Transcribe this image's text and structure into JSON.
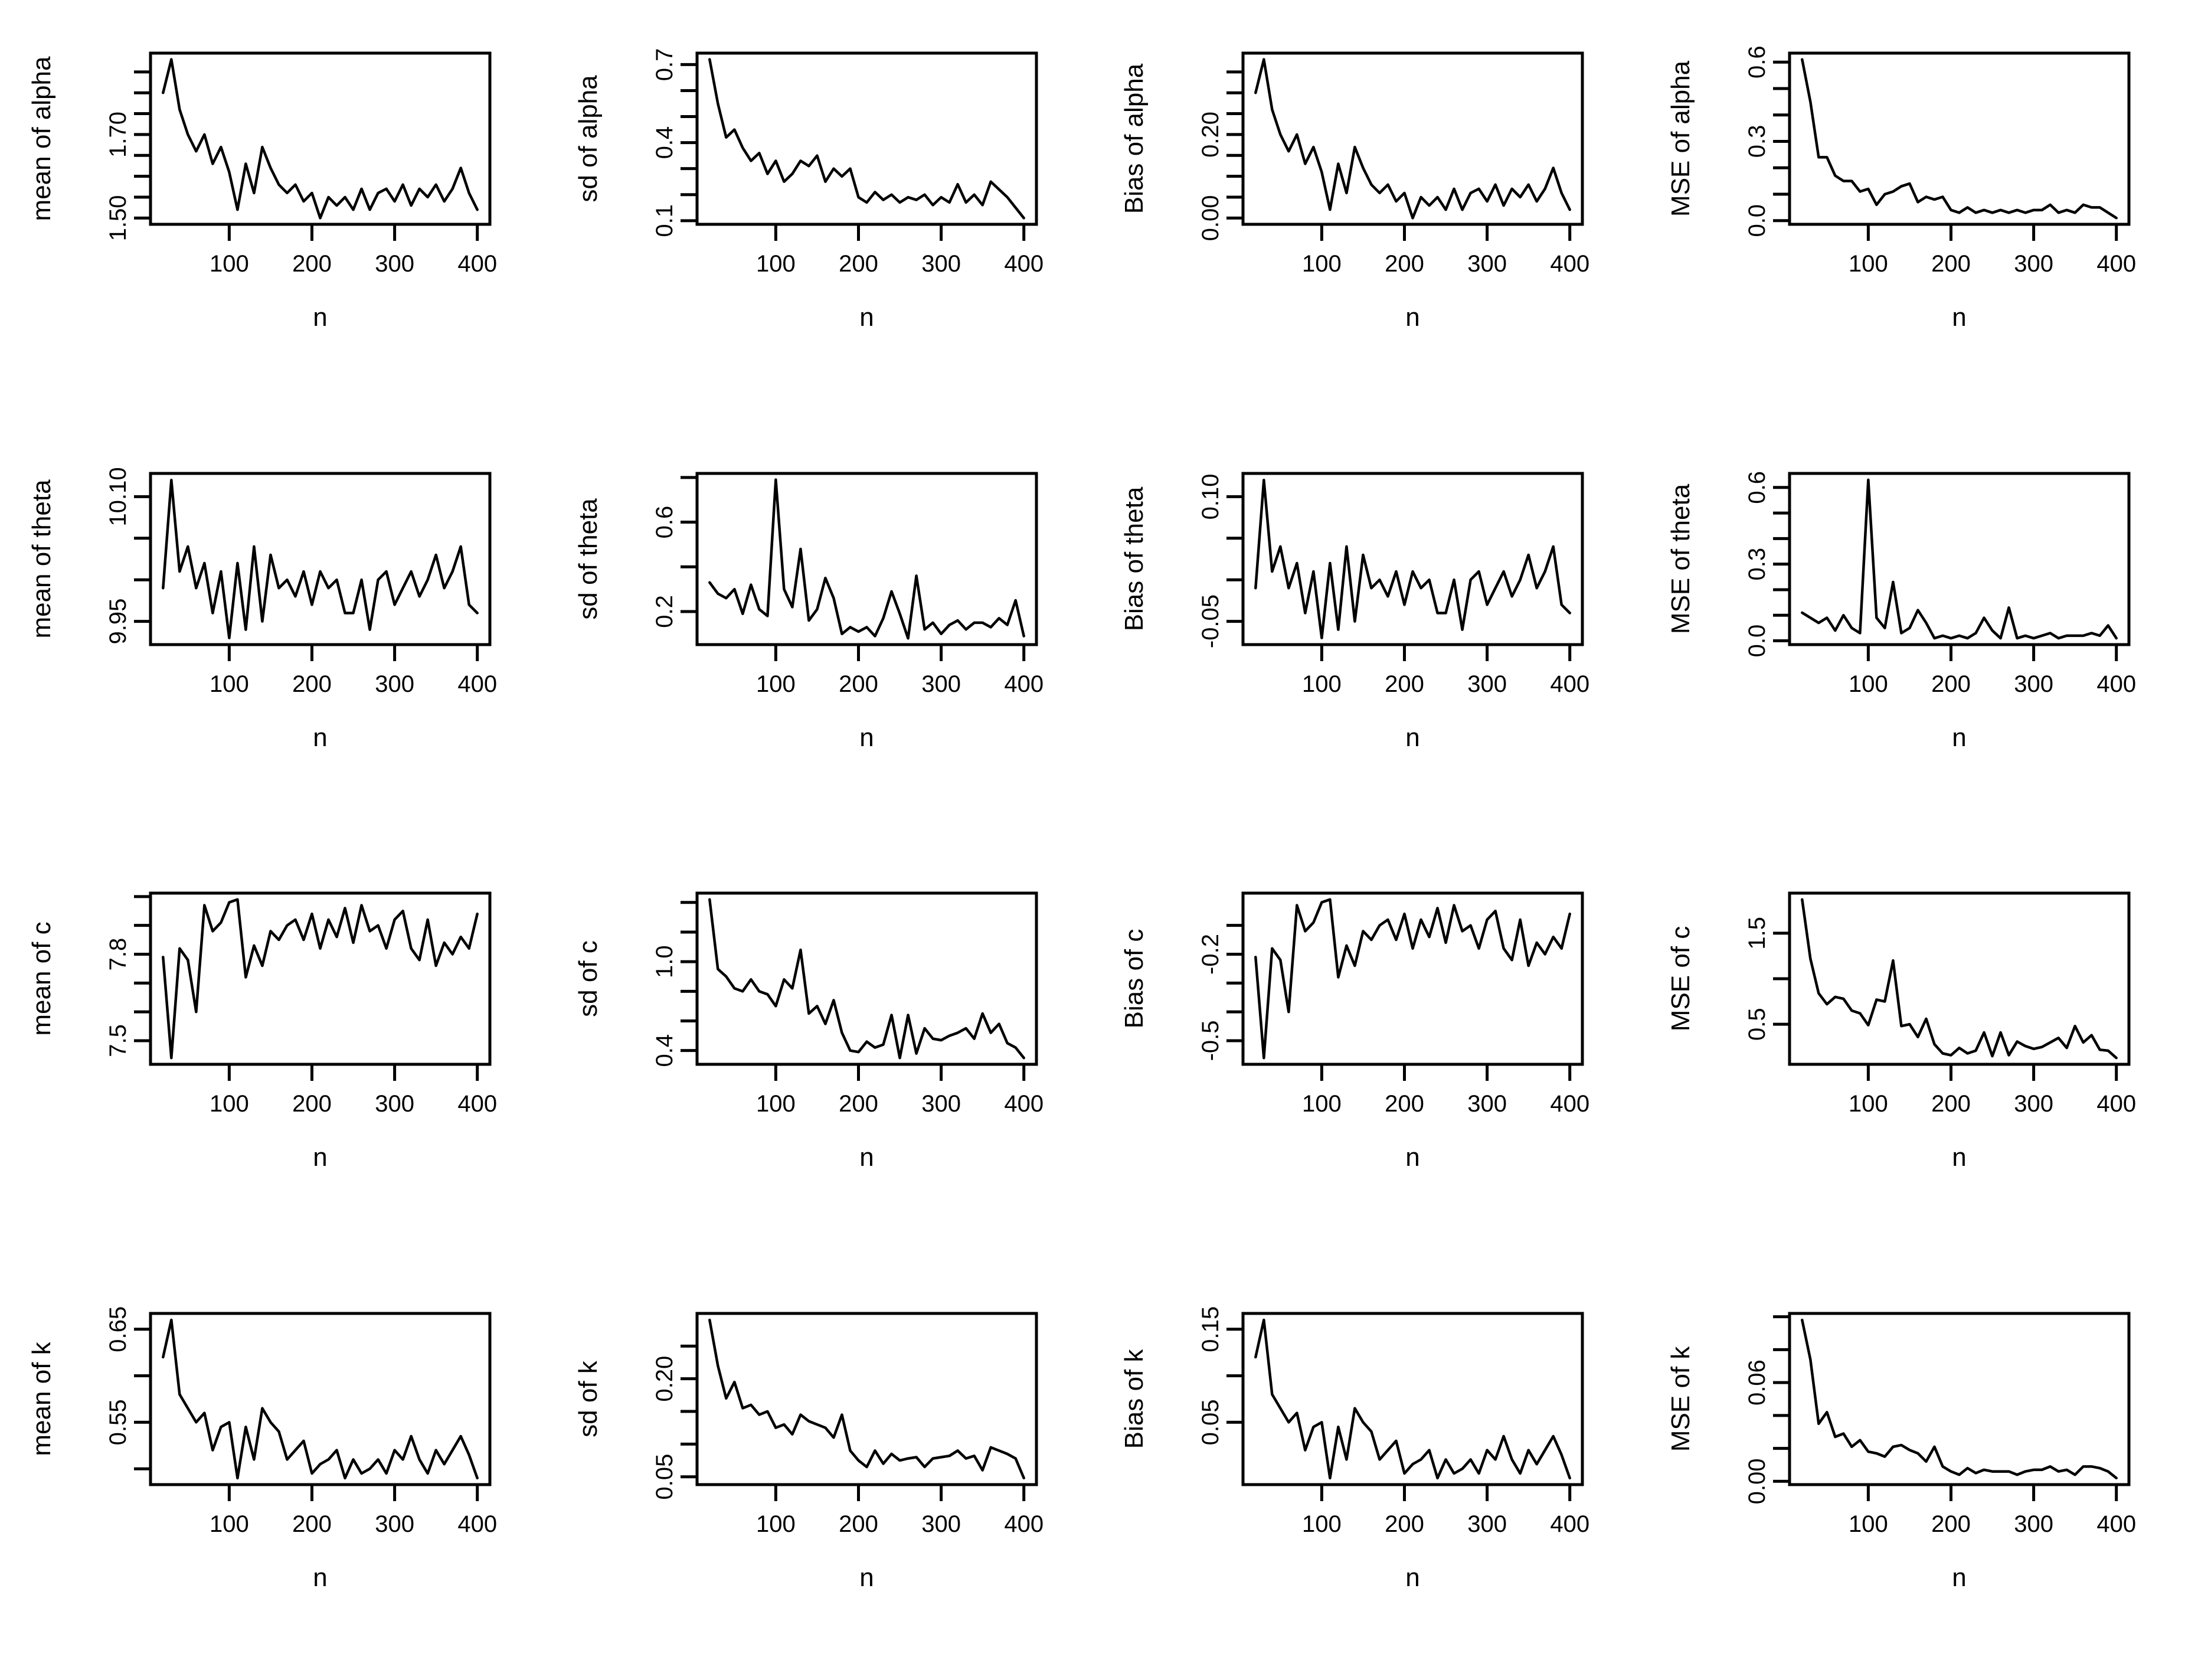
{
  "figure": {
    "background": "#ffffff",
    "line_color": "#000000",
    "xlabel": "n",
    "xlim": [
      4.8,
      415.2
    ],
    "x_ticks": [
      100,
      200,
      300,
      400
    ],
    "x_tick_labels": [
      "100",
      "200",
      "300",
      "400"
    ],
    "n": [
      20,
      30,
      40,
      50,
      60,
      70,
      80,
      90,
      100,
      110,
      120,
      130,
      140,
      150,
      160,
      170,
      180,
      190,
      200,
      210,
      220,
      230,
      240,
      250,
      260,
      270,
      280,
      290,
      300,
      310,
      320,
      330,
      340,
      350,
      360,
      370,
      380,
      390,
      400
    ]
  },
  "chart_data": [
    {
      "type": "line",
      "ylabel": "mean of alpha",
      "xlabel": "n",
      "ylim": [
        1.485,
        1.895
      ],
      "yticks": [
        1.5,
        1.55,
        1.6,
        1.65,
        1.7,
        1.75,
        1.8,
        1.85
      ],
      "ylabeled": [
        {
          "v": 1.5,
          "t": "1.50"
        },
        {
          "v": 1.7,
          "t": "1.70"
        }
      ],
      "values": [
        1.8,
        1.88,
        1.76,
        1.7,
        1.66,
        1.7,
        1.63,
        1.67,
        1.61,
        1.52,
        1.63,
        1.56,
        1.67,
        1.62,
        1.58,
        1.56,
        1.58,
        1.54,
        1.56,
        1.5,
        1.55,
        1.53,
        1.55,
        1.52,
        1.57,
        1.52,
        1.56,
        1.57,
        1.54,
        1.58,
        1.53,
        1.57,
        1.55,
        1.58,
        1.54,
        1.57,
        1.62,
        1.56,
        1.52
      ]
    },
    {
      "type": "line",
      "ylabel": "sd of alpha",
      "xlabel": "n",
      "ylim": [
        0.086,
        0.744
      ],
      "yticks": [
        0.1,
        0.2,
        0.3,
        0.4,
        0.5,
        0.6,
        0.7
      ],
      "ylabeled": [
        {
          "v": 0.1,
          "t": "0.1"
        },
        {
          "v": 0.4,
          "t": "0.4"
        },
        {
          "v": 0.7,
          "t": "0.7"
        }
      ],
      "values": [
        0.72,
        0.55,
        0.42,
        0.45,
        0.38,
        0.33,
        0.36,
        0.28,
        0.33,
        0.25,
        0.28,
        0.33,
        0.31,
        0.35,
        0.25,
        0.3,
        0.27,
        0.3,
        0.19,
        0.17,
        0.21,
        0.18,
        0.2,
        0.17,
        0.19,
        0.18,
        0.2,
        0.16,
        0.19,
        0.17,
        0.24,
        0.17,
        0.2,
        0.16,
        0.25,
        0.22,
        0.19,
        0.15,
        0.11
      ]
    },
    {
      "type": "line",
      "ylabel": "Bias of alpha",
      "xlabel": "n",
      "ylim": [
        -0.015,
        0.395
      ],
      "yticks": [
        0.0,
        0.05,
        0.1,
        0.15,
        0.2,
        0.25,
        0.3,
        0.35
      ],
      "ylabeled": [
        {
          "v": 0.0,
          "t": "0.00"
        },
        {
          "v": 0.2,
          "t": "0.20"
        }
      ],
      "values": [
        0.3,
        0.38,
        0.26,
        0.2,
        0.16,
        0.2,
        0.13,
        0.17,
        0.11,
        0.02,
        0.13,
        0.06,
        0.17,
        0.12,
        0.08,
        0.06,
        0.08,
        0.04,
        0.06,
        0.0,
        0.05,
        0.03,
        0.05,
        0.02,
        0.07,
        0.02,
        0.06,
        0.07,
        0.04,
        0.08,
        0.03,
        0.07,
        0.05,
        0.08,
        0.04,
        0.07,
        0.12,
        0.06,
        0.02
      ]
    },
    {
      "type": "line",
      "ylabel": "MSE of alpha",
      "xlabel": "n",
      "ylim": [
        -0.014,
        0.634
      ],
      "yticks": [
        0.0,
        0.1,
        0.2,
        0.3,
        0.4,
        0.5,
        0.6
      ],
      "ylabeled": [
        {
          "v": 0.0,
          "t": "0.0"
        },
        {
          "v": 0.3,
          "t": "0.3"
        },
        {
          "v": 0.6,
          "t": "0.6"
        }
      ],
      "values": [
        0.61,
        0.45,
        0.24,
        0.24,
        0.17,
        0.15,
        0.15,
        0.11,
        0.12,
        0.06,
        0.1,
        0.11,
        0.13,
        0.14,
        0.07,
        0.09,
        0.08,
        0.09,
        0.04,
        0.03,
        0.05,
        0.03,
        0.04,
        0.03,
        0.04,
        0.03,
        0.04,
        0.03,
        0.04,
        0.04,
        0.06,
        0.03,
        0.04,
        0.03,
        0.06,
        0.05,
        0.05,
        0.03,
        0.01
      ]
    },
    {
      "type": "line",
      "ylabel": "mean of theta",
      "xlabel": "n",
      "ylim": [
        9.922,
        10.128
      ],
      "yticks": [
        9.95,
        10.0,
        10.05,
        10.1
      ],
      "ylabeled": [
        {
          "v": 9.95,
          "t": "9.95"
        },
        {
          "v": 10.1,
          "t": "10.10"
        }
      ],
      "values": [
        9.99,
        10.12,
        10.01,
        10.04,
        9.99,
        10.02,
        9.96,
        10.01,
        9.93,
        10.02,
        9.94,
        10.04,
        9.95,
        10.03,
        9.99,
        10.0,
        9.98,
        10.01,
        9.97,
        10.01,
        9.99,
        10.0,
        9.96,
        9.96,
        10.0,
        9.94,
        10.0,
        10.01,
        9.97,
        9.99,
        10.01,
        9.98,
        10.0,
        10.03,
        9.99,
        10.01,
        10.04,
        9.97,
        9.96
      ]
    },
    {
      "type": "line",
      "ylabel": "sd of theta",
      "xlabel": "n",
      "ylim": [
        0.052,
        0.818
      ],
      "yticks": [
        0.2,
        0.4,
        0.6,
        0.8
      ],
      "ylabeled": [
        {
          "v": 0.2,
          "t": "0.2"
        },
        {
          "v": 0.6,
          "t": "0.6"
        }
      ],
      "values": [
        0.33,
        0.28,
        0.26,
        0.3,
        0.19,
        0.32,
        0.21,
        0.18,
        0.79,
        0.3,
        0.22,
        0.48,
        0.16,
        0.21,
        0.35,
        0.26,
        0.1,
        0.13,
        0.11,
        0.13,
        0.09,
        0.17,
        0.29,
        0.19,
        0.08,
        0.36,
        0.12,
        0.15,
        0.1,
        0.14,
        0.16,
        0.12,
        0.15,
        0.15,
        0.13,
        0.17,
        0.14,
        0.25,
        0.09
      ]
    },
    {
      "type": "line",
      "ylabel": "Bias of theta",
      "xlabel": "n",
      "ylim": [
        -0.078,
        0.128
      ],
      "yticks": [
        -0.05,
        0.0,
        0.05,
        0.1
      ],
      "ylabeled": [
        {
          "v": -0.05,
          "t": "-0.05"
        },
        {
          "v": 0.1,
          "t": "0.10"
        }
      ],
      "values": [
        -0.01,
        0.12,
        0.01,
        0.04,
        -0.01,
        0.02,
        -0.04,
        0.01,
        -0.07,
        0.02,
        -0.06,
        0.04,
        -0.05,
        0.03,
        -0.01,
        0.0,
        -0.02,
        0.01,
        -0.03,
        0.01,
        -0.01,
        0.0,
        -0.04,
        -0.04,
        0.0,
        -0.06,
        0.0,
        0.01,
        -0.03,
        -0.01,
        0.01,
        -0.02,
        0.0,
        0.03,
        -0.01,
        0.01,
        0.04,
        -0.03,
        -0.04
      ]
    },
    {
      "type": "line",
      "ylabel": "MSE of theta",
      "xlabel": "n",
      "ylim": [
        -0.015,
        0.655
      ],
      "yticks": [
        0.0,
        0.1,
        0.2,
        0.3,
        0.4,
        0.5,
        0.6
      ],
      "ylabeled": [
        {
          "v": 0.0,
          "t": "0.0"
        },
        {
          "v": 0.3,
          "t": "0.3"
        },
        {
          "v": 0.6,
          "t": "0.6"
        }
      ],
      "values": [
        0.11,
        0.09,
        0.07,
        0.09,
        0.04,
        0.1,
        0.05,
        0.03,
        0.63,
        0.09,
        0.05,
        0.23,
        0.03,
        0.05,
        0.12,
        0.07,
        0.01,
        0.02,
        0.01,
        0.02,
        0.01,
        0.03,
        0.09,
        0.04,
        0.01,
        0.13,
        0.01,
        0.02,
        0.01,
        0.02,
        0.03,
        0.01,
        0.02,
        0.02,
        0.02,
        0.03,
        0.02,
        0.06,
        0.01
      ]
    },
    {
      "type": "line",
      "ylabel": "mean of c",
      "xlabel": "n",
      "ylim": [
        7.418,
        8.012
      ],
      "yticks": [
        7.5,
        7.6,
        7.7,
        7.8,
        7.9,
        8.0
      ],
      "ylabeled": [
        {
          "v": 7.5,
          "t": "7.5"
        },
        {
          "v": 7.8,
          "t": "7.8"
        }
      ],
      "values": [
        7.79,
        7.44,
        7.82,
        7.78,
        7.6,
        7.97,
        7.88,
        7.91,
        7.98,
        7.99,
        7.72,
        7.83,
        7.76,
        7.88,
        7.85,
        7.9,
        7.92,
        7.85,
        7.94,
        7.82,
        7.92,
        7.86,
        7.96,
        7.84,
        7.97,
        7.88,
        7.9,
        7.82,
        7.92,
        7.95,
        7.82,
        7.78,
        7.92,
        7.76,
        7.84,
        7.8,
        7.86,
        7.82,
        7.94
      ]
    },
    {
      "type": "line",
      "ylabel": "sd of c",
      "xlabel": "n",
      "ylim": [
        0.307,
        1.463
      ],
      "yticks": [
        0.4,
        0.6,
        0.8,
        1.0,
        1.2,
        1.4
      ],
      "ylabeled": [
        {
          "v": 0.4,
          "t": "0.4"
        },
        {
          "v": 1.0,
          "t": "1.0"
        }
      ],
      "values": [
        1.42,
        0.95,
        0.9,
        0.82,
        0.8,
        0.88,
        0.8,
        0.78,
        0.7,
        0.88,
        0.82,
        1.08,
        0.65,
        0.7,
        0.58,
        0.74,
        0.52,
        0.4,
        0.39,
        0.46,
        0.42,
        0.44,
        0.64,
        0.35,
        0.64,
        0.38,
        0.55,
        0.48,
        0.47,
        0.5,
        0.52,
        0.55,
        0.48,
        0.65,
        0.52,
        0.58,
        0.45,
        0.42,
        0.35
      ]
    },
    {
      "type": "line",
      "ylabel": "Bias of c",
      "xlabel": "n",
      "ylim": [
        -0.582,
        0.012
      ],
      "yticks": [
        -0.5,
        -0.4,
        -0.3,
        -0.2,
        -0.1
      ],
      "ylabeled": [
        {
          "v": -0.5,
          "t": "-0.5"
        },
        {
          "v": -0.2,
          "t": "-0.2"
        }
      ],
      "values": [
        -0.21,
        -0.56,
        -0.18,
        -0.22,
        -0.4,
        -0.03,
        -0.12,
        -0.09,
        -0.02,
        -0.01,
        -0.28,
        -0.17,
        -0.24,
        -0.12,
        -0.15,
        -0.1,
        -0.08,
        -0.15,
        -0.06,
        -0.18,
        -0.08,
        -0.14,
        -0.04,
        -0.16,
        -0.03,
        -0.12,
        -0.1,
        -0.18,
        -0.08,
        -0.05,
        -0.18,
        -0.22,
        -0.08,
        -0.24,
        -0.16,
        -0.2,
        -0.14,
        -0.18,
        -0.06
      ]
    },
    {
      "type": "line",
      "ylabel": "MSE of c",
      "xlabel": "n",
      "ylim": [
        0.06,
        1.94
      ],
      "yticks": [
        0.5,
        1.0,
        1.5
      ],
      "ylabeled": [
        {
          "v": 0.5,
          "t": "0.5"
        },
        {
          "v": 1.5,
          "t": "1.5"
        }
      ],
      "values": [
        1.87,
        1.22,
        0.84,
        0.72,
        0.8,
        0.78,
        0.65,
        0.62,
        0.49,
        0.77,
        0.75,
        1.2,
        0.48,
        0.5,
        0.36,
        0.56,
        0.28,
        0.18,
        0.16,
        0.24,
        0.18,
        0.21,
        0.41,
        0.15,
        0.41,
        0.16,
        0.31,
        0.26,
        0.23,
        0.25,
        0.3,
        0.35,
        0.24,
        0.48,
        0.3,
        0.38,
        0.22,
        0.21,
        0.13
      ]
    },
    {
      "type": "line",
      "ylabel": "mean of k",
      "xlabel": "n",
      "ylim": [
        0.483,
        0.667
      ],
      "yticks": [
        0.5,
        0.55,
        0.6,
        0.65
      ],
      "ylabeled": [
        {
          "v": 0.55,
          "t": "0.55"
        },
        {
          "v": 0.65,
          "t": "0.65"
        }
      ],
      "values": [
        0.62,
        0.66,
        0.58,
        0.565,
        0.55,
        0.56,
        0.52,
        0.545,
        0.55,
        0.49,
        0.545,
        0.51,
        0.565,
        0.55,
        0.54,
        0.51,
        0.52,
        0.53,
        0.495,
        0.505,
        0.51,
        0.52,
        0.49,
        0.51,
        0.495,
        0.5,
        0.51,
        0.495,
        0.52,
        0.51,
        0.535,
        0.51,
        0.495,
        0.52,
        0.505,
        0.52,
        0.535,
        0.515,
        0.49
      ]
    },
    {
      "type": "line",
      "ylabel": "sd of k",
      "xlabel": "n",
      "ylim": [
        0.038,
        0.3
      ],
      "yticks": [
        0.05,
        0.1,
        0.15,
        0.2,
        0.25
      ],
      "ylabeled": [
        {
          "v": 0.05,
          "t": "0.05"
        },
        {
          "v": 0.2,
          "t": "0.20"
        }
      ],
      "values": [
        0.29,
        0.22,
        0.17,
        0.195,
        0.155,
        0.16,
        0.145,
        0.15,
        0.125,
        0.13,
        0.115,
        0.145,
        0.135,
        0.13,
        0.125,
        0.11,
        0.145,
        0.09,
        0.075,
        0.065,
        0.09,
        0.07,
        0.085,
        0.075,
        0.078,
        0.08,
        0.065,
        0.078,
        0.08,
        0.082,
        0.09,
        0.078,
        0.082,
        0.06,
        0.095,
        0.09,
        0.085,
        0.078,
        0.048
      ]
    },
    {
      "type": "line",
      "ylabel": "Bias of k",
      "xlabel": "n",
      "ylim": [
        -0.017,
        0.167
      ],
      "yticks": [
        0.05,
        0.1,
        0.15
      ],
      "ylabeled": [
        {
          "v": 0.05,
          "t": "0.05"
        },
        {
          "v": 0.15,
          "t": "0.15"
        }
      ],
      "values": [
        0.12,
        0.16,
        0.08,
        0.065,
        0.05,
        0.06,
        0.02,
        0.045,
        0.05,
        -0.01,
        0.045,
        0.01,
        0.065,
        0.05,
        0.04,
        0.01,
        0.02,
        0.03,
        -0.005,
        0.005,
        0.01,
        0.02,
        -0.01,
        0.01,
        -0.005,
        0.0,
        0.01,
        -0.005,
        0.02,
        0.01,
        0.035,
        0.01,
        -0.005,
        0.02,
        0.005,
        0.02,
        0.035,
        0.015,
        -0.01
      ]
    },
    {
      "type": "line",
      "ylabel": "MSE of k",
      "xlabel": "n",
      "ylim": [
        -0.002,
        0.102
      ],
      "yticks": [
        0.0,
        0.02,
        0.04,
        0.06,
        0.08,
        0.1
      ],
      "ylabeled": [
        {
          "v": 0.0,
          "t": "0.00"
        },
        {
          "v": 0.06,
          "t": "0.06"
        }
      ],
      "values": [
        0.098,
        0.074,
        0.035,
        0.042,
        0.027,
        0.029,
        0.021,
        0.025,
        0.018,
        0.017,
        0.015,
        0.021,
        0.022,
        0.019,
        0.017,
        0.012,
        0.021,
        0.009,
        0.006,
        0.004,
        0.008,
        0.005,
        0.007,
        0.006,
        0.006,
        0.006,
        0.004,
        0.006,
        0.007,
        0.007,
        0.009,
        0.006,
        0.007,
        0.004,
        0.009,
        0.009,
        0.008,
        0.006,
        0.002
      ]
    }
  ]
}
